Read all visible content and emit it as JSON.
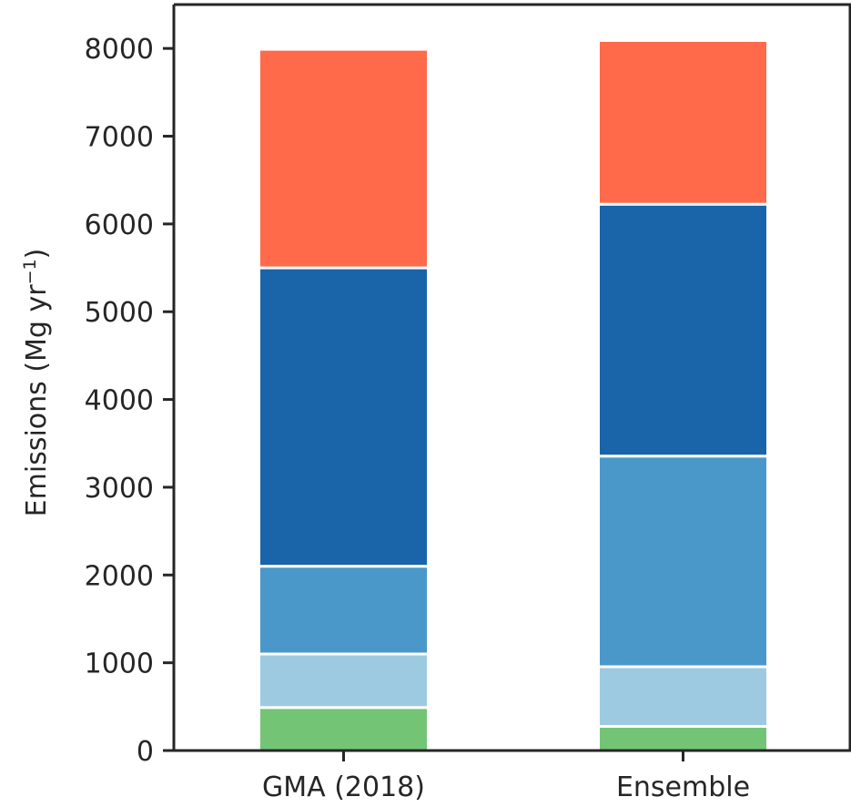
{
  "chart_data": {
    "type": "bar",
    "stacked": true,
    "categories": [
      "GMA (2018)",
      "Ensemble"
    ],
    "series": [
      {
        "color": "#74c476",
        "values": [
          490,
          275
        ]
      },
      {
        "color": "#9ecae1",
        "values": [
          610,
          680
        ]
      },
      {
        "color": "#4a98c9",
        "values": [
          1000,
          2400
        ]
      },
      {
        "color": "#1a64aa",
        "values": [
          3400,
          2870
        ]
      },
      {
        "color": "#fe6a4a",
        "values": [
          2490,
          1865
        ]
      }
    ],
    "ylim": [
      0,
      8500
    ],
    "yticks": [
      "0",
      "1000",
      "2000",
      "3000",
      "4000",
      "5000",
      "6000",
      "7000",
      "8000"
    ],
    "ylabel": "Emissions (Mg yr",
    "ylabel_sup": "−1",
    "ylabel_close": ")",
    "grid": false
  }
}
